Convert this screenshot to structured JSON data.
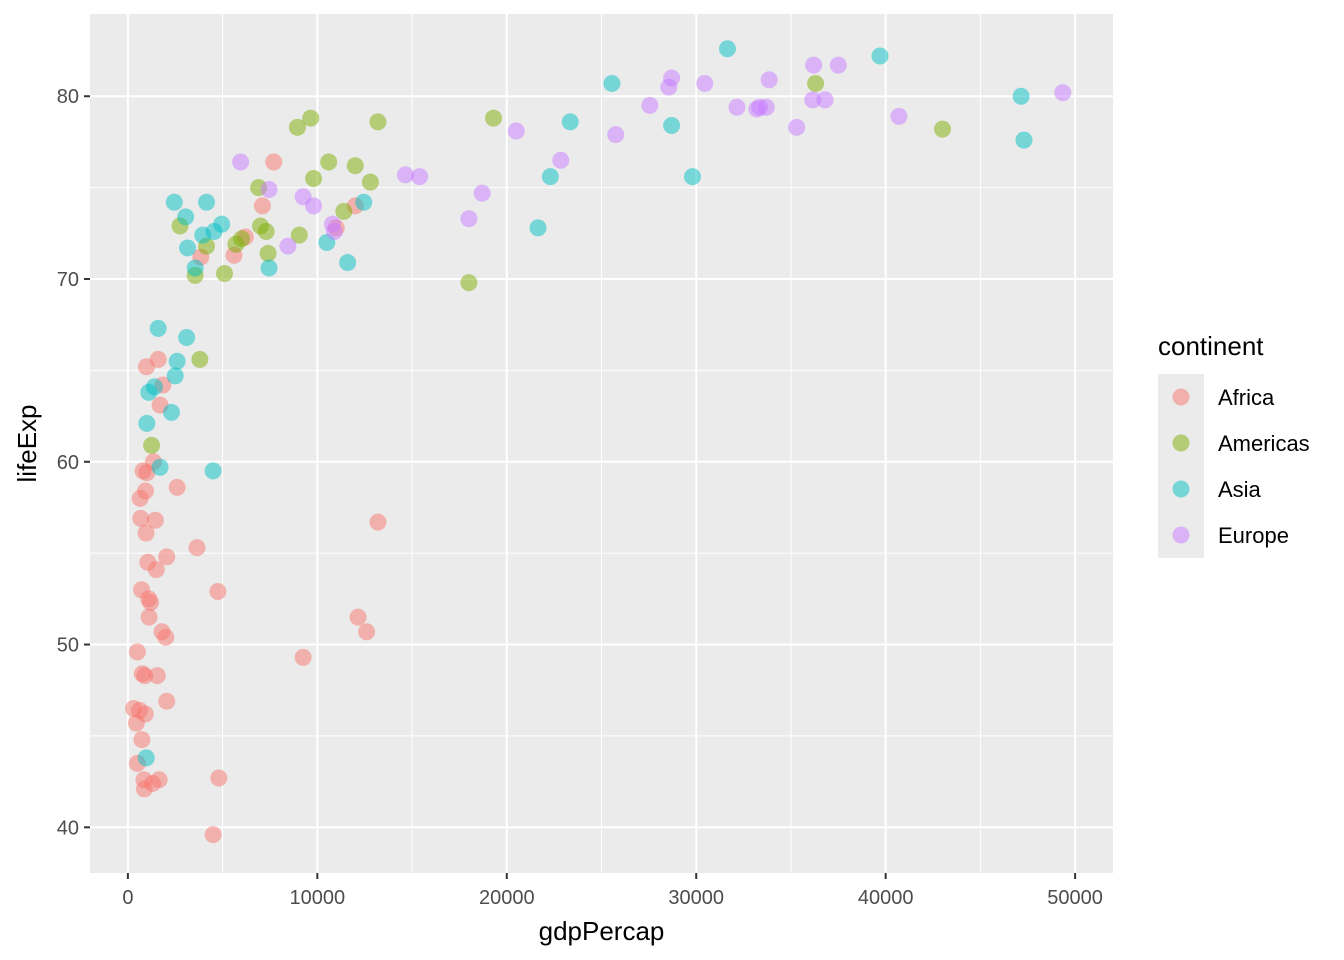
{
  "chart_data": {
    "type": "scatter",
    "xlabel": "gdpPercap",
    "ylabel": "lifeExp",
    "xlim": [
      -2000,
      52000
    ],
    "ylim": [
      37.5,
      84.5
    ],
    "x_ticks": [
      0,
      10000,
      20000,
      30000,
      40000,
      50000
    ],
    "x_tick_labels": [
      "0",
      "10000",
      "20000",
      "30000",
      "40000",
      "50000"
    ],
    "y_ticks": [
      40,
      50,
      60,
      70,
      80
    ],
    "y_tick_labels": [
      "40",
      "50",
      "60",
      "70",
      "80"
    ],
    "grid": true,
    "background": "#ebebeb",
    "gridline_color": "#ffffff",
    "point_opacity": 0.5,
    "legend": {
      "title": "continent",
      "placement": "right"
    },
    "series": [
      {
        "name": "Africa",
        "color": "#f8766d",
        "points": [
          [
            300,
            46.5
          ],
          [
            450,
            45.7
          ],
          [
            500,
            43.5
          ],
          [
            500,
            49.6
          ],
          [
            620,
            46.4
          ],
          [
            650,
            58.0
          ],
          [
            680,
            56.9
          ],
          [
            720,
            53.0
          ],
          [
            740,
            44.8
          ],
          [
            760,
            48.4
          ],
          [
            800,
            59.5
          ],
          [
            850,
            42.6
          ],
          [
            870,
            42.1
          ],
          [
            890,
            48.3
          ],
          [
            920,
            46.2
          ],
          [
            930,
            58.4
          ],
          [
            960,
            56.1
          ],
          [
            980,
            65.2
          ],
          [
            1000,
            59.4
          ],
          [
            1050,
            54.5
          ],
          [
            1100,
            52.5
          ],
          [
            1120,
            51.5
          ],
          [
            1200,
            52.3
          ],
          [
            1300,
            42.4
          ],
          [
            1350,
            60.0
          ],
          [
            1450,
            56.8
          ],
          [
            1500,
            54.1
          ],
          [
            1550,
            48.3
          ],
          [
            1600,
            65.6
          ],
          [
            1650,
            42.6
          ],
          [
            1700,
            63.1
          ],
          [
            1800,
            50.7
          ],
          [
            1850,
            64.2
          ],
          [
            2000,
            50.4
          ],
          [
            2050,
            54.8
          ],
          [
            2050,
            46.9
          ],
          [
            2600,
            58.6
          ],
          [
            3650,
            55.3
          ],
          [
            3850,
            71.2
          ],
          [
            4500,
            39.6
          ],
          [
            4750,
            52.9
          ],
          [
            4800,
            42.7
          ],
          [
            5600,
            71.3
          ],
          [
            6200,
            72.3
          ],
          [
            7100,
            74.0
          ],
          [
            7700,
            76.4
          ],
          [
            9250,
            49.3
          ],
          [
            11000,
            72.8
          ],
          [
            12000,
            74.0
          ],
          [
            12150,
            51.5
          ],
          [
            12600,
            50.7
          ],
          [
            13200,
            56.7
          ]
        ]
      },
      {
        "name": "Americas",
        "color": "#7cae00",
        "points": [
          [
            1250,
            60.9
          ],
          [
            2750,
            72.9
          ],
          [
            3550,
            70.2
          ],
          [
            3800,
            65.6
          ],
          [
            4150,
            71.8
          ],
          [
            5100,
            70.3
          ],
          [
            5700,
            71.9
          ],
          [
            6000,
            72.2
          ],
          [
            6900,
            75.0
          ],
          [
            7000,
            72.9
          ],
          [
            7300,
            72.6
          ],
          [
            7400,
            71.4
          ],
          [
            8950,
            78.3
          ],
          [
            9050,
            72.4
          ],
          [
            9650,
            78.8
          ],
          [
            9800,
            75.5
          ],
          [
            10600,
            76.4
          ],
          [
            11400,
            73.7
          ],
          [
            12000,
            76.2
          ],
          [
            12800,
            75.3
          ],
          [
            13200,
            78.6
          ],
          [
            18000,
            69.8
          ],
          [
            19300,
            78.8
          ],
          [
            36300,
            80.7
          ],
          [
            43000,
            78.2
          ]
        ]
      },
      {
        "name": "Asia",
        "color": "#00bfc4",
        "points": [
          [
            970,
            43.8
          ],
          [
            1000,
            62.1
          ],
          [
            1100,
            63.8
          ],
          [
            1400,
            64.1
          ],
          [
            1600,
            67.3
          ],
          [
            1700,
            59.7
          ],
          [
            2300,
            62.7
          ],
          [
            2450,
            74.2
          ],
          [
            2500,
            64.7
          ],
          [
            2600,
            65.5
          ],
          [
            3050,
            73.4
          ],
          [
            3100,
            66.8
          ],
          [
            3150,
            71.7
          ],
          [
            3550,
            70.6
          ],
          [
            3950,
            72.4
          ],
          [
            4150,
            74.2
          ],
          [
            4500,
            59.5
          ],
          [
            4550,
            72.6
          ],
          [
            4950,
            73.0
          ],
          [
            7450,
            70.6
          ],
          [
            10500,
            72.0
          ],
          [
            11600,
            70.9
          ],
          [
            12450,
            74.2
          ],
          [
            21650,
            72.8
          ],
          [
            22300,
            75.6
          ],
          [
            23350,
            78.6
          ],
          [
            25550,
            80.7
          ],
          [
            28700,
            78.4
          ],
          [
            29800,
            75.6
          ],
          [
            31650,
            82.6
          ],
          [
            39700,
            82.2
          ],
          [
            47150,
            80.0
          ],
          [
            47300,
            77.6
          ]
        ]
      },
      {
        "name": "Europe",
        "color": "#c77cff",
        "points": [
          [
            5950,
            76.4
          ],
          [
            7450,
            74.9
          ],
          [
            8450,
            71.8
          ],
          [
            9250,
            74.5
          ],
          [
            9800,
            74.0
          ],
          [
            10800,
            73.0
          ],
          [
            10900,
            72.6
          ],
          [
            14650,
            75.7
          ],
          [
            15400,
            75.6
          ],
          [
            18000,
            73.3
          ],
          [
            18700,
            74.7
          ],
          [
            20500,
            78.1
          ],
          [
            22850,
            76.5
          ],
          [
            25750,
            77.9
          ],
          [
            27550,
            79.5
          ],
          [
            28550,
            80.5
          ],
          [
            28700,
            81.0
          ],
          [
            30450,
            80.7
          ],
          [
            32150,
            79.4
          ],
          [
            33200,
            79.3
          ],
          [
            33350,
            79.4
          ],
          [
            33700,
            79.4
          ],
          [
            33850,
            80.9
          ],
          [
            35300,
            78.3
          ],
          [
            36150,
            79.8
          ],
          [
            36200,
            81.7
          ],
          [
            36800,
            79.8
          ],
          [
            37500,
            81.7
          ],
          [
            40700,
            78.9
          ],
          [
            49350,
            80.2
          ]
        ]
      }
    ]
  }
}
